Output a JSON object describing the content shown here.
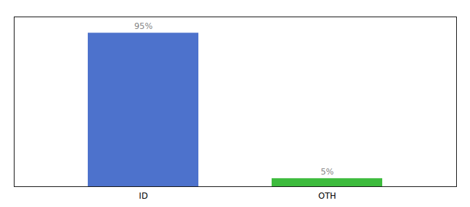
{
  "chart_data": {
    "type": "bar",
    "categories": [
      "ID",
      "OTH"
    ],
    "values": [
      95,
      5
    ],
    "value_labels": [
      "95%",
      "5%"
    ],
    "colors": [
      "#4d72cc",
      "#3dbb3d"
    ],
    "ylim": [
      0,
      105
    ],
    "data_labels": true,
    "tick_labels": "x",
    "grid": false
  }
}
